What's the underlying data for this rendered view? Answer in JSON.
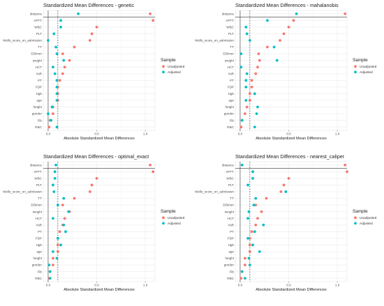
{
  "legend": {
    "title": "Sample",
    "entries": [
      {
        "name": "Unadjusted",
        "color": "#f8766d"
      },
      {
        "name": "Adjusted",
        "color": "#00bfc4"
      }
    ]
  },
  "colors": {
    "unadjusted": "#f8766d",
    "adjusted": "#00bfc4",
    "grid": "#ebebeb",
    "threshold_line": "#333333"
  },
  "chart_data": [
    {
      "type": "scatter",
      "title": "Standardized Mean Differences - genetic",
      "xlabel": "Absolute Standardized Mean Differences",
      "ylabel": "",
      "x_ticks": [
        0.0,
        0.5,
        1.0
      ],
      "xlim": [
        -0.05,
        1.1
      ],
      "threshold": 0.1,
      "grid": true,
      "legend_position": "right",
      "covariates": [
        "distance",
        "APTT",
        "WBC",
        "PLT",
        "Wells_score_on_admission",
        "TT",
        "DDimer",
        "weight",
        "HCT",
        "INR",
        "PT",
        "FDP",
        "Hgb",
        "age",
        "height",
        "gender",
        "Fib",
        "RBC"
      ],
      "series": [
        {
          "name": "Unadjusted",
          "values": [
            1.05,
            1.08,
            0.5,
            0.45,
            0.43,
            0.27,
            0.15,
            0.22,
            0.17,
            0.15,
            0.12,
            0.1,
            0.1,
            0.1,
            0.05,
            0.05,
            0.02,
            0.01
          ]
        },
        {
          "name": "Adjusted",
          "values": [
            0.31,
            0.13,
            0.13,
            0.06,
            0.0,
            0.08,
            0.09,
            0.16,
            0.05,
            0.07,
            0.09,
            0.09,
            0.09,
            0.09,
            0.04,
            0.0,
            0.03,
            0.09
          ]
        }
      ]
    },
    {
      "type": "scatter",
      "title": "Standardized Mean Differences - mahalanobis",
      "xlabel": "Absolute Standardized Mean Differences",
      "ylabel": "",
      "x_ticks": [
        0.0,
        0.5,
        1.0
      ],
      "xlim": [
        -0.05,
        1.1
      ],
      "threshold": 0.1,
      "grid": true,
      "legend_position": "right",
      "covariates": [
        "distance",
        "APTT",
        "WBC",
        "PLT",
        "Wells_score_on_admission",
        "TT",
        "DDimer",
        "weight",
        "HCT",
        "INR",
        "PT",
        "FDP",
        "Hgb",
        "age",
        "height",
        "gender",
        "Fib",
        "RBC"
      ],
      "series": [
        {
          "name": "Unadjusted",
          "values": [
            1.08,
            0.55,
            0.5,
            0.45,
            0.41,
            0.28,
            0.19,
            0.2,
            0.18,
            0.16,
            0.12,
            0.12,
            0.1,
            0.1,
            0.07,
            0.05,
            0.02,
            0.01
          ]
        },
        {
          "name": "Adjusted",
          "values": [
            0.58,
            0.28,
            0.06,
            0.07,
            0.1,
            0.35,
            0.01,
            0.38,
            0.01,
            0.07,
            0.06,
            0.06,
            0.15,
            0.06,
            0.18,
            0.17,
            0.02,
            0.15
          ]
        }
      ]
    },
    {
      "type": "scatter",
      "title": "Standardized Mean Differences - optimal_exact",
      "xlabel": "Absolute Standardized Mean Differences",
      "ylabel": "",
      "x_ticks": [
        0.0,
        0.5,
        1.0
      ],
      "xlim": [
        -0.05,
        1.1
      ],
      "threshold": 0.1,
      "grid": true,
      "legend_position": "right",
      "covariates": [
        "distance",
        "APTT",
        "WBC",
        "PLT",
        "Wells_score_on_admission",
        "TT",
        "DDimer",
        "weight",
        "HCT",
        "INR",
        "PT",
        "FDP",
        "Hgb",
        "age",
        "height",
        "gender",
        "Fib",
        "RBC"
      ],
      "series": [
        {
          "name": "Unadjusted",
          "values": [
            1.05,
            1.08,
            0.5,
            0.45,
            0.43,
            0.27,
            0.15,
            0.22,
            0.17,
            0.15,
            0.12,
            0.1,
            0.1,
            0.1,
            0.05,
            0.05,
            0.02,
            0.01
          ]
        },
        {
          "name": "Adjusted",
          "values": [
            0.08,
            0.07,
            0.07,
            0.05,
            0.06,
            0.16,
            0.1,
            0.21,
            0.05,
            0.16,
            0.18,
            0.1,
            0.13,
            0.05,
            0.09,
            0.01,
            0.02,
            0.02
          ]
        }
      ]
    },
    {
      "type": "scatter",
      "title": "Standardized Mean Differences - nearest_caliper",
      "xlabel": "Absolute Standardized Mean Differences",
      "ylabel": "",
      "x_ticks": [
        0.0,
        0.5,
        1.0
      ],
      "xlim": [
        -0.05,
        1.1
      ],
      "threshold": 0.1,
      "grid": true,
      "legend_position": "right",
      "covariates": [
        "distance",
        "APTT",
        "WBC",
        "PLT",
        "Wells_score_on_admission",
        "TT",
        "DDimer",
        "weight",
        "HCT",
        "INR",
        "PT",
        "FDP",
        "Hgb",
        "age",
        "height",
        "gender",
        "Fib",
        "RBC"
      ],
      "series": [
        {
          "name": "Unadjusted",
          "values": [
            1.08,
            1.1,
            0.5,
            0.45,
            0.42,
            0.27,
            0.16,
            0.22,
            0.18,
            0.16,
            0.12,
            0.1,
            0.1,
            0.1,
            0.05,
            0.05,
            0.02,
            0.01
          ]
        },
        {
          "name": "Adjusted",
          "values": [
            0.02,
            0.13,
            0.13,
            0.08,
            0.47,
            0.16,
            0.14,
            0.09,
            0.08,
            0.24,
            0.15,
            0.08,
            0.13,
            0.2,
            0.09,
            0.1,
            0.02,
            0.05
          ]
        }
      ]
    }
  ]
}
